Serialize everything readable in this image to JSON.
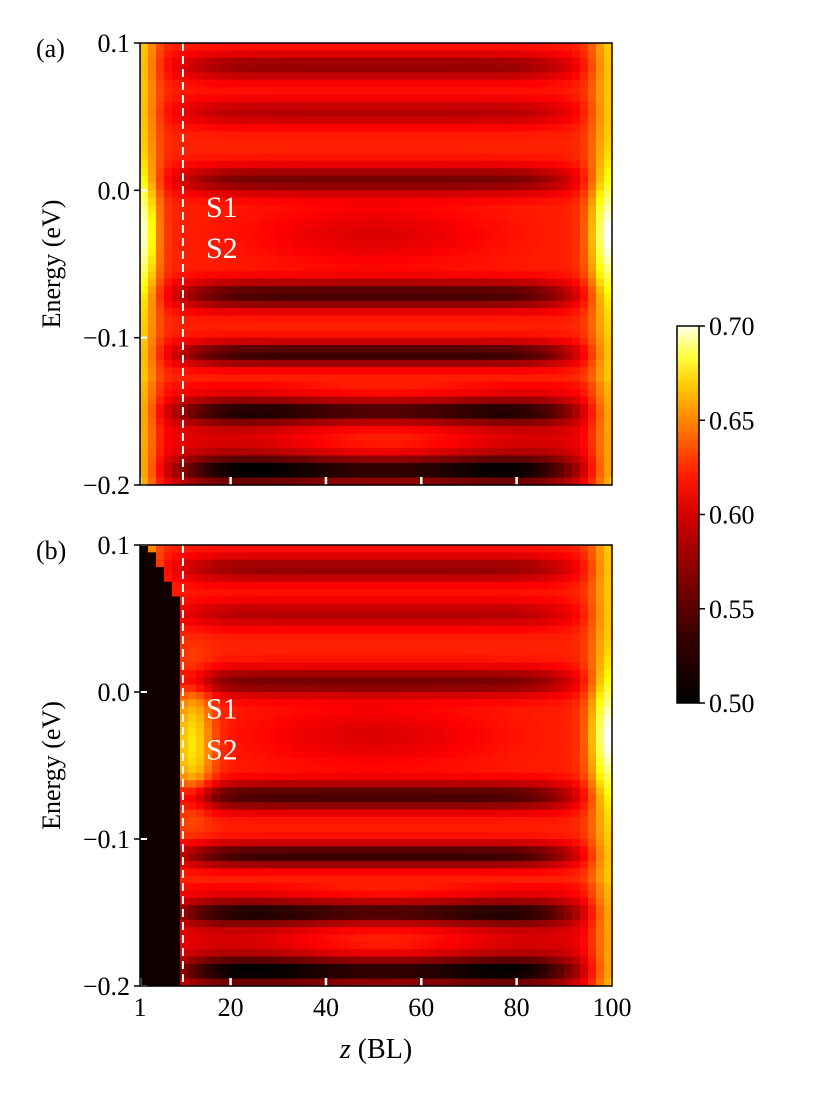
{
  "chart_data": {
    "type": "heatmap",
    "panels": [
      {
        "panel_label": "(a)",
        "ylabel": "Energy (eV)",
        "ylim": [
          -0.2,
          0.1
        ],
        "y_ticks": [
          0.1,
          0.0,
          -0.1,
          -0.2
        ],
        "y_tick_labels": [
          "0.1",
          "0.0",
          "−0.1",
          "−0.2"
        ],
        "annotations": [
          "S1",
          "S2"
        ],
        "dashed_line_z": 10,
        "left_dark_region": false
      },
      {
        "panel_label": "(b)",
        "ylabel": "Energy (eV)",
        "ylim": [
          -0.2,
          0.1
        ],
        "y_ticks": [
          0.1,
          0.0,
          -0.1,
          -0.2
        ],
        "y_tick_labels": [
          "0.1",
          "0.0",
          "−0.1",
          "−0.2"
        ],
        "annotations": [
          "S1",
          "S2"
        ],
        "dashed_line_z": 10,
        "left_dark_region": true
      }
    ],
    "xlabel_italic": "z",
    "xlabel_rest": " (BL)",
    "xlim": [
      1,
      100
    ],
    "x_ticks": [
      1,
      20,
      40,
      60,
      80,
      100
    ],
    "x_tick_labels": [
      "1",
      "20",
      "40",
      "60",
      "80",
      "100"
    ],
    "colorbar": {
      "range": [
        0.5,
        0.7
      ],
      "ticks": [
        0.7,
        0.65,
        0.6,
        0.55,
        0.5
      ],
      "tick_labels": [
        "0.70",
        "0.65",
        "0.60",
        "0.55",
        "0.50"
      ],
      "colormap": "hot"
    },
    "grid": false
  }
}
